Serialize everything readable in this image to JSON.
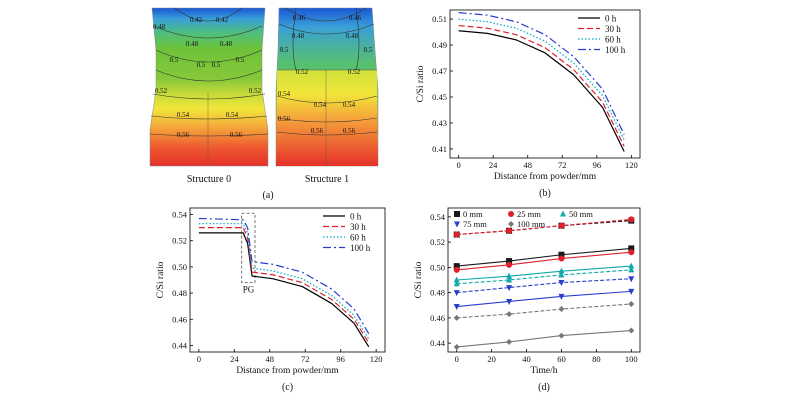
{
  "panel_a": {
    "label": "(a)",
    "structures": [
      {
        "name": "Structure 0",
        "contour_labels": [
          "0.42",
          "0.42",
          "0.48",
          "0.48",
          "0.48",
          "0.5",
          "0.5",
          "0.5",
          "0.5",
          "0.52",
          "0.52",
          "0.54",
          "0.54",
          "0.56",
          "0.56"
        ]
      },
      {
        "name": "Structure 1",
        "contour_labels": [
          "0.46",
          "0.46",
          "0.48",
          "0.48",
          "0.5",
          "0.5",
          "0.52",
          "0.52",
          "0.54",
          "0.54",
          "0.54",
          "0.56",
          "0.56",
          "0.56"
        ]
      }
    ],
    "colors": {
      "low": "#1e5fd8",
      "mid": "#6ec23a",
      "high": "#e8362a",
      "yellow": "#f2e63a"
    }
  },
  "chart_data": [
    {
      "id": "b",
      "label": "(b)",
      "type": "line",
      "xlabel": "Distance from powder/mm",
      "ylabel": "C/Si ratio",
      "xlim": [
        -6,
        126
      ],
      "ylim": [
        0.403,
        0.517
      ],
      "xticks": [
        0,
        24,
        48,
        72,
        96,
        120
      ],
      "yticks": [
        0.41,
        0.43,
        0.45,
        0.47,
        0.49,
        0.51
      ],
      "ytick_labels": [
        "0.41",
        "0.43",
        "0.45",
        "0.47",
        "0.49",
        "0.51"
      ],
      "legend": "top-right",
      "series": [
        {
          "name": "0 h",
          "color": "#000000",
          "dash": "",
          "x": [
            0,
            20,
            40,
            60,
            80,
            100,
            115
          ],
          "y": [
            0.501,
            0.499,
            0.494,
            0.484,
            0.467,
            0.442,
            0.408
          ]
        },
        {
          "name": "30 h",
          "color": "#e0202a",
          "dash": "6,3",
          "x": [
            0,
            20,
            40,
            60,
            80,
            100,
            115
          ],
          "y": [
            0.505,
            0.503,
            0.498,
            0.488,
            0.471,
            0.446,
            0.412
          ]
        },
        {
          "name": "60 h",
          "color": "#00a9c4",
          "dash": "1.5,2",
          "x": [
            0,
            20,
            40,
            60,
            80,
            100,
            115
          ],
          "y": [
            0.51,
            0.508,
            0.503,
            0.493,
            0.476,
            0.451,
            0.417
          ]
        },
        {
          "name": "100 h",
          "color": "#2a3ecc",
          "dash": "8,3,2,3",
          "x": [
            0,
            20,
            40,
            60,
            80,
            100,
            115
          ],
          "y": [
            0.515,
            0.513,
            0.508,
            0.498,
            0.481,
            0.456,
            0.421
          ]
        }
      ]
    },
    {
      "id": "c",
      "label": "(c)",
      "type": "line",
      "xlabel": "Distance from powder/mm",
      "ylabel": "C/Si ratio",
      "xlim": [
        -6,
        126
      ],
      "ylim": [
        0.435,
        0.545
      ],
      "xticks": [
        0,
        24,
        48,
        72,
        96,
        120
      ],
      "yticks": [
        0.44,
        0.46,
        0.48,
        0.5,
        0.52,
        0.54
      ],
      "ytick_labels": [
        "0.44",
        "0.46",
        "0.48",
        "0.50",
        "0.52",
        "0.54"
      ],
      "legend": "top-right",
      "annotation": "PG",
      "pg_range": [
        29,
        38
      ],
      "series": [
        {
          "name": "0 h",
          "color": "#000000",
          "dash": "",
          "x": [
            0,
            30,
            33,
            36,
            50,
            70,
            90,
            105,
            115
          ],
          "y": [
            0.526,
            0.526,
            0.518,
            0.493,
            0.491,
            0.485,
            0.472,
            0.457,
            0.439
          ]
        },
        {
          "name": "30 h",
          "color": "#e0202a",
          "dash": "6,3",
          "x": [
            0,
            30,
            33,
            36,
            50,
            70,
            90,
            105,
            115
          ],
          "y": [
            0.53,
            0.53,
            0.522,
            0.496,
            0.494,
            0.488,
            0.475,
            0.46,
            0.442
          ]
        },
        {
          "name": "60 h",
          "color": "#00a9c4",
          "dash": "1.5,2",
          "x": [
            0,
            30,
            33,
            36,
            50,
            70,
            90,
            105,
            115
          ],
          "y": [
            0.533,
            0.533,
            0.526,
            0.499,
            0.497,
            0.491,
            0.478,
            0.463,
            0.445
          ]
        },
        {
          "name": "100 h",
          "color": "#2a3ecc",
          "dash": "8,3,2,3",
          "x": [
            0,
            30,
            33,
            36,
            50,
            70,
            90,
            105,
            115
          ],
          "y": [
            0.537,
            0.536,
            0.53,
            0.504,
            0.502,
            0.496,
            0.483,
            0.468,
            0.449
          ]
        }
      ]
    },
    {
      "id": "d",
      "label": "(d)",
      "type": "scatter",
      "xlabel": "Time/h",
      "ylabel": "C/Si ratio",
      "xlim": [
        -5,
        105
      ],
      "ylim": [
        0.433,
        0.547
      ],
      "xticks": [
        0,
        20,
        40,
        60,
        80,
        100
      ],
      "yticks": [
        0.44,
        0.46,
        0.48,
        0.5,
        0.52,
        0.54
      ],
      "ytick_labels": [
        "0.44",
        "0.46",
        "0.48",
        "0.50",
        "0.52",
        "0.54"
      ],
      "legend": "top-left",
      "x": [
        0,
        30,
        60,
        100
      ],
      "series": [
        {
          "name": "0 mm",
          "color": "#1a1a1a",
          "marker": "square",
          "values": [
            0.501,
            0.505,
            0.51,
            0.515
          ],
          "lower": [
            0.526,
            0.529,
            0.533,
            0.537
          ]
        },
        {
          "name": "25 mm",
          "color": "#e0202a",
          "marker": "circle",
          "values": [
            0.498,
            0.502,
            0.507,
            0.512
          ],
          "lower": [
            0.526,
            0.529,
            0.533,
            0.538
          ]
        },
        {
          "name": "50 mm",
          "color": "#10a9a9",
          "marker": "triangle-up",
          "values": [
            0.49,
            0.493,
            0.497,
            0.501
          ],
          "lower": [
            0.487,
            0.49,
            0.494,
            0.498
          ]
        },
        {
          "name": "75 mm",
          "color": "#2a3ecc",
          "marker": "triangle-down",
          "values": [
            0.469,
            0.473,
            0.477,
            0.481
          ],
          "lower": [
            0.48,
            0.484,
            0.488,
            0.491
          ]
        },
        {
          "name": "100 mm",
          "color": "#777777",
          "marker": "diamond",
          "values": [
            0.437,
            0.441,
            0.446,
            0.45
          ],
          "lower": [
            0.46,
            0.463,
            0.467,
            0.471
          ]
        }
      ]
    }
  ]
}
